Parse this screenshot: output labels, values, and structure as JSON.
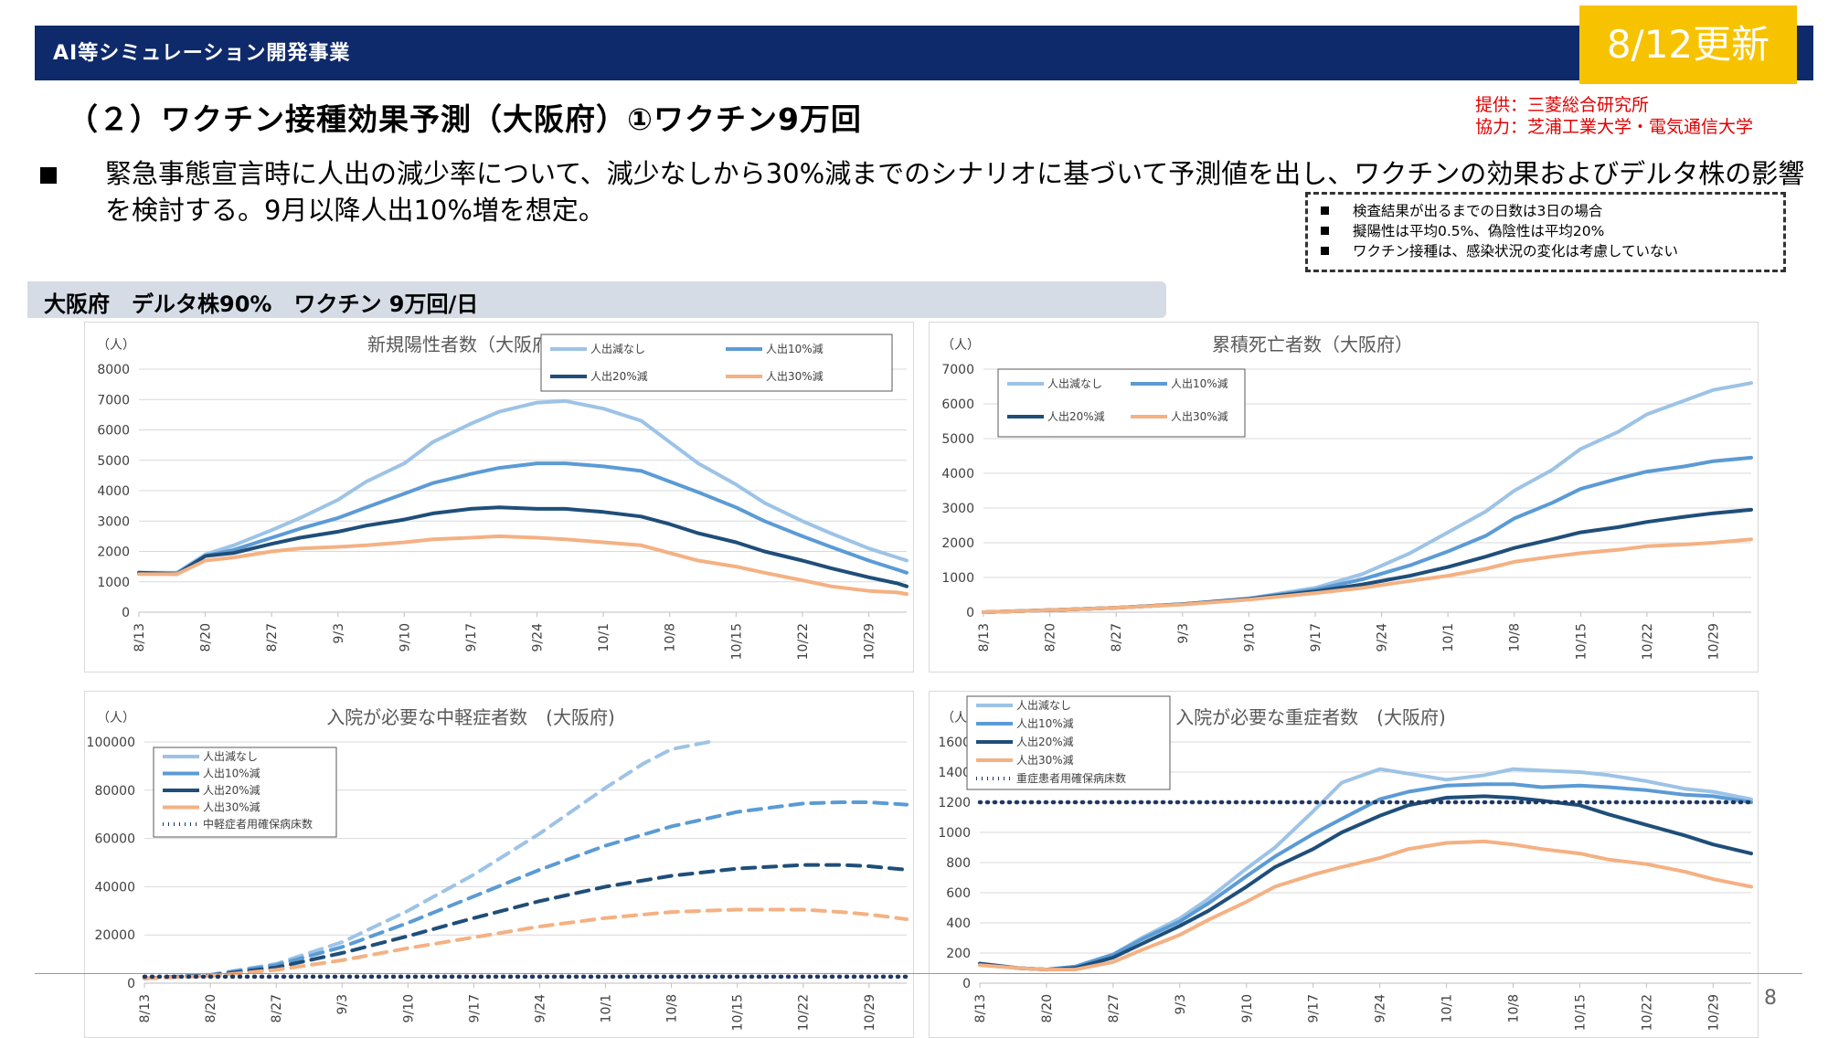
{
  "header": {
    "title": "AI等シミュレーション開発事業",
    "badge": "8/12更新"
  },
  "credits": {
    "provider": "提供：三菱総合研究所",
    "cooperation": "協力：芝浦工業大学・電気通信大学"
  },
  "page_title": "（２）ワクチン接種効果予測（大阪府）①ワクチン9万回",
  "description": "緊急事態宣言時に人出の減少率について、減少なしから30%減までのシナリオに基づいて予測値を出し、ワクチンの効果およびデルタ株の影響を検討する。9月以降人出10%増を想定。",
  "notes": [
    "検査結果が出るまでの日数は3日の場合",
    "擬陽性は平均0.5%、偽陰性は平均20%",
    "ワクチン接種は、感染状況の変化は考慮していない"
  ],
  "scenario_label": "大阪府　デルタ株90%　ワクチン 9万回/日",
  "page_number": "8",
  "colors": {
    "none": "#9dc3e6",
    "r10": "#5b9bd5",
    "r20": "#1f4e79",
    "r30": "#f4b183",
    "capacity": "#203864"
  },
  "chart_data": [
    {
      "type": "line",
      "title": "新規陽性者数（大阪府）",
      "unit_label": "（人）",
      "x_ticks": [
        "8/13",
        "8/20",
        "8/27",
        "9/3",
        "9/10",
        "9/17",
        "9/24",
        "10/1",
        "10/8",
        "10/15",
        "10/22",
        "10/29"
      ],
      "ylim": [
        0,
        8000
      ],
      "y_ticks": [
        0,
        1000,
        2000,
        3000,
        4000,
        5000,
        6000,
        7000,
        8000
      ],
      "series": [
        {
          "name": "人出減なし",
          "key": "none",
          "x": [
            0,
            4,
            7,
            10,
            14,
            17,
            21,
            24,
            28,
            31,
            35,
            38,
            42,
            45,
            49,
            53,
            56,
            59,
            63,
            66,
            70,
            73,
            77,
            80,
            81
          ],
          "values": [
            1300,
            1300,
            1900,
            2200,
            2700,
            3100,
            3700,
            4300,
            4900,
            5600,
            6200,
            6600,
            6900,
            6950,
            6700,
            6300,
            5600,
            4900,
            4200,
            3600,
            3000,
            2600,
            2100,
            1800,
            1700
          ]
        },
        {
          "name": "人出10%減",
          "key": "r10",
          "x": [
            0,
            4,
            7,
            10,
            14,
            17,
            21,
            24,
            28,
            31,
            35,
            38,
            42,
            45,
            49,
            53,
            56,
            59,
            63,
            66,
            70,
            73,
            77,
            80,
            81
          ],
          "values": [
            1300,
            1280,
            1850,
            2050,
            2450,
            2750,
            3100,
            3450,
            3900,
            4250,
            4550,
            4750,
            4900,
            4900,
            4800,
            4650,
            4300,
            3950,
            3450,
            3000,
            2500,
            2150,
            1700,
            1400,
            1300
          ]
        },
        {
          "name": "人出20%減",
          "key": "r20",
          "x": [
            0,
            4,
            7,
            10,
            14,
            17,
            21,
            24,
            28,
            31,
            35,
            38,
            42,
            45,
            49,
            53,
            56,
            59,
            63,
            66,
            70,
            73,
            77,
            80,
            81
          ],
          "values": [
            1300,
            1250,
            1850,
            1950,
            2250,
            2450,
            2650,
            2850,
            3050,
            3250,
            3400,
            3450,
            3400,
            3400,
            3300,
            3150,
            2900,
            2600,
            2300,
            2000,
            1700,
            1450,
            1150,
            950,
            850
          ]
        },
        {
          "name": "人出30%減",
          "key": "r30",
          "x": [
            0,
            4,
            7,
            10,
            14,
            17,
            21,
            24,
            28,
            31,
            35,
            38,
            42,
            45,
            49,
            53,
            56,
            59,
            63,
            66,
            70,
            73,
            77,
            80,
            81
          ],
          "values": [
            1250,
            1250,
            1700,
            1800,
            2000,
            2100,
            2150,
            2200,
            2300,
            2400,
            2450,
            2500,
            2450,
            2400,
            2300,
            2200,
            1950,
            1700,
            1500,
            1300,
            1050,
            850,
            700,
            650,
            600
          ]
        }
      ],
      "legend": "top-right"
    },
    {
      "type": "line",
      "title": "累積死亡者数（大阪府）",
      "unit_label": "（人）",
      "x_ticks": [
        "8/13",
        "8/20",
        "8/27",
        "9/3",
        "9/10",
        "9/17",
        "9/24",
        "10/1",
        "10/8",
        "10/15",
        "10/22",
        "10/29"
      ],
      "ylim": [
        0,
        7000
      ],
      "y_ticks": [
        0,
        1000,
        2000,
        3000,
        4000,
        5000,
        6000,
        7000
      ],
      "series": [
        {
          "name": "人出減なし",
          "key": "none",
          "x": [
            0,
            7,
            14,
            21,
            28,
            35,
            40,
            45,
            49,
            53,
            56,
            60,
            63,
            67,
            70,
            74,
            77,
            81
          ],
          "values": [
            0,
            60,
            130,
            230,
            400,
            700,
            1100,
            1700,
            2300,
            2900,
            3500,
            4100,
            4700,
            5200,
            5700,
            6100,
            6400,
            6600
          ]
        },
        {
          "name": "人出10%減",
          "key": "r10",
          "x": [
            0,
            7,
            14,
            21,
            28,
            35,
            40,
            45,
            49,
            53,
            56,
            60,
            63,
            67,
            70,
            74,
            77,
            81
          ],
          "values": [
            0,
            60,
            130,
            230,
            390,
            650,
            950,
            1350,
            1750,
            2200,
            2700,
            3150,
            3550,
            3850,
            4050,
            4200,
            4350,
            4450
          ]
        },
        {
          "name": "人出20%減",
          "key": "r20",
          "x": [
            0,
            7,
            14,
            21,
            28,
            35,
            40,
            45,
            49,
            53,
            56,
            60,
            63,
            67,
            70,
            74,
            77,
            81
          ],
          "values": [
            0,
            60,
            130,
            230,
            380,
            600,
            800,
            1050,
            1300,
            1600,
            1850,
            2100,
            2300,
            2450,
            2600,
            2750,
            2850,
            2950
          ]
        },
        {
          "name": "人出30%減",
          "key": "r30",
          "x": [
            0,
            7,
            14,
            21,
            28,
            35,
            40,
            45,
            49,
            53,
            56,
            60,
            63,
            67,
            70,
            74,
            77,
            81
          ],
          "values": [
            0,
            60,
            130,
            220,
            360,
            550,
            700,
            900,
            1050,
            1250,
            1450,
            1600,
            1700,
            1800,
            1900,
            1950,
            2000,
            2100
          ]
        }
      ],
      "legend": "top-left"
    },
    {
      "type": "line",
      "title": "入院が必要な中軽症者数　(大阪府)",
      "unit_label": "（人）",
      "x_ticks": [
        "8/13",
        "8/20",
        "8/27",
        "9/3",
        "9/10",
        "9/17",
        "9/24",
        "10/1",
        "10/8",
        "10/15",
        "10/22",
        "10/29"
      ],
      "ylim": [
        0,
        100000
      ],
      "y_ticks": [
        0,
        20000,
        40000,
        60000,
        80000,
        100000
      ],
      "series": [
        {
          "name": "人出減なし",
          "key": "none",
          "dashed": true,
          "x": [
            0,
            7,
            14,
            21,
            28,
            35,
            42,
            49,
            53,
            56,
            60
          ],
          "values": [
            2000,
            3500,
            8000,
            17000,
            30000,
            45000,
            62000,
            81000,
            91000,
            97000,
            100000
          ]
        },
        {
          "name": "人出10%減",
          "key": "r10",
          "dashed": true,
          "x": [
            0,
            7,
            14,
            21,
            28,
            35,
            42,
            49,
            56,
            63,
            70,
            74,
            77,
            81
          ],
          "values": [
            2000,
            3400,
            7500,
            15000,
            25000,
            36000,
            47000,
            57000,
            65000,
            71000,
            74500,
            75000,
            75000,
            74000
          ]
        },
        {
          "name": "人出20%減",
          "key": "r20",
          "dashed": true,
          "x": [
            0,
            7,
            14,
            21,
            28,
            35,
            42,
            49,
            56,
            63,
            70,
            74,
            77,
            81
          ],
          "values": [
            2000,
            3200,
            6500,
            12500,
            19500,
            27000,
            34000,
            40000,
            44500,
            47500,
            49000,
            49000,
            48500,
            47000
          ]
        },
        {
          "name": "人出30%減",
          "key": "r30",
          "dashed": true,
          "x": [
            0,
            7,
            14,
            21,
            28,
            35,
            42,
            49,
            56,
            63,
            70,
            74,
            77,
            81
          ],
          "values": [
            2000,
            3000,
            5500,
            9500,
            14500,
            19000,
            23500,
            27000,
            29500,
            30500,
            30500,
            29500,
            28500,
            26500
          ]
        },
        {
          "name": "中軽症者用確保病床数",
          "key": "capacity",
          "dotted": true,
          "x": [
            0,
            81
          ],
          "values": [
            2700,
            2700
          ]
        }
      ],
      "legend": "top-left"
    },
    {
      "type": "line",
      "title": "入院が必要な重症者数　(大阪府)",
      "unit_label": "（人）",
      "x_ticks": [
        "8/13",
        "8/20",
        "8/27",
        "9/3",
        "9/10",
        "9/17",
        "9/24",
        "10/1",
        "10/8",
        "10/15",
        "10/22",
        "10/29"
      ],
      "ylim": [
        0,
        1600
      ],
      "y_ticks": [
        0,
        200,
        400,
        600,
        800,
        1000,
        1200,
        1400,
        1600
      ],
      "series": [
        {
          "name": "人出減なし",
          "key": "none",
          "x": [
            0,
            4,
            7,
            10,
            14,
            17,
            21,
            24,
            28,
            31,
            35,
            38,
            42,
            45,
            49,
            53,
            56,
            59,
            63,
            66,
            70,
            74,
            77,
            81
          ],
          "values": [
            130,
            100,
            90,
            110,
            190,
            300,
            430,
            560,
            760,
            900,
            1140,
            1330,
            1420,
            1390,
            1350,
            1380,
            1420,
            1410,
            1400,
            1380,
            1340,
            1290,
            1270,
            1220
          ]
        },
        {
          "name": "人出10%減",
          "key": "r10",
          "x": [
            0,
            4,
            7,
            10,
            14,
            17,
            21,
            24,
            28,
            31,
            35,
            38,
            42,
            45,
            49,
            53,
            56,
            59,
            63,
            66,
            70,
            74,
            77,
            81
          ],
          "values": [
            130,
            100,
            90,
            110,
            190,
            290,
            410,
            530,
            710,
            840,
            990,
            1090,
            1220,
            1270,
            1310,
            1320,
            1320,
            1300,
            1310,
            1300,
            1280,
            1250,
            1240,
            1200
          ]
        },
        {
          "name": "人出20%減",
          "key": "r20",
          "x": [
            0,
            4,
            7,
            10,
            14,
            17,
            21,
            24,
            28,
            31,
            35,
            38,
            42,
            45,
            49,
            53,
            56,
            59,
            63,
            66,
            70,
            74,
            77,
            81
          ],
          "values": [
            130,
            100,
            90,
            100,
            170,
            260,
            380,
            480,
            640,
            770,
            890,
            1000,
            1110,
            1180,
            1230,
            1240,
            1230,
            1210,
            1180,
            1120,
            1050,
            980,
            920,
            860
          ]
        },
        {
          "name": "人出30%減",
          "key": "r30",
          "x": [
            0,
            4,
            7,
            10,
            14,
            17,
            21,
            24,
            28,
            31,
            35,
            38,
            42,
            45,
            49,
            53,
            56,
            59,
            63,
            66,
            70,
            74,
            77,
            81
          ],
          "values": [
            120,
            100,
            90,
            90,
            140,
            220,
            320,
            420,
            540,
            640,
            720,
            770,
            830,
            890,
            930,
            940,
            920,
            890,
            860,
            820,
            790,
            740,
            690,
            640
          ]
        },
        {
          "name": "重症患者用確保病床数",
          "key": "capacity",
          "dotted": true,
          "x": [
            0,
            81
          ],
          "values": [
            1200,
            1200
          ]
        }
      ],
      "legend": "top-left"
    }
  ]
}
